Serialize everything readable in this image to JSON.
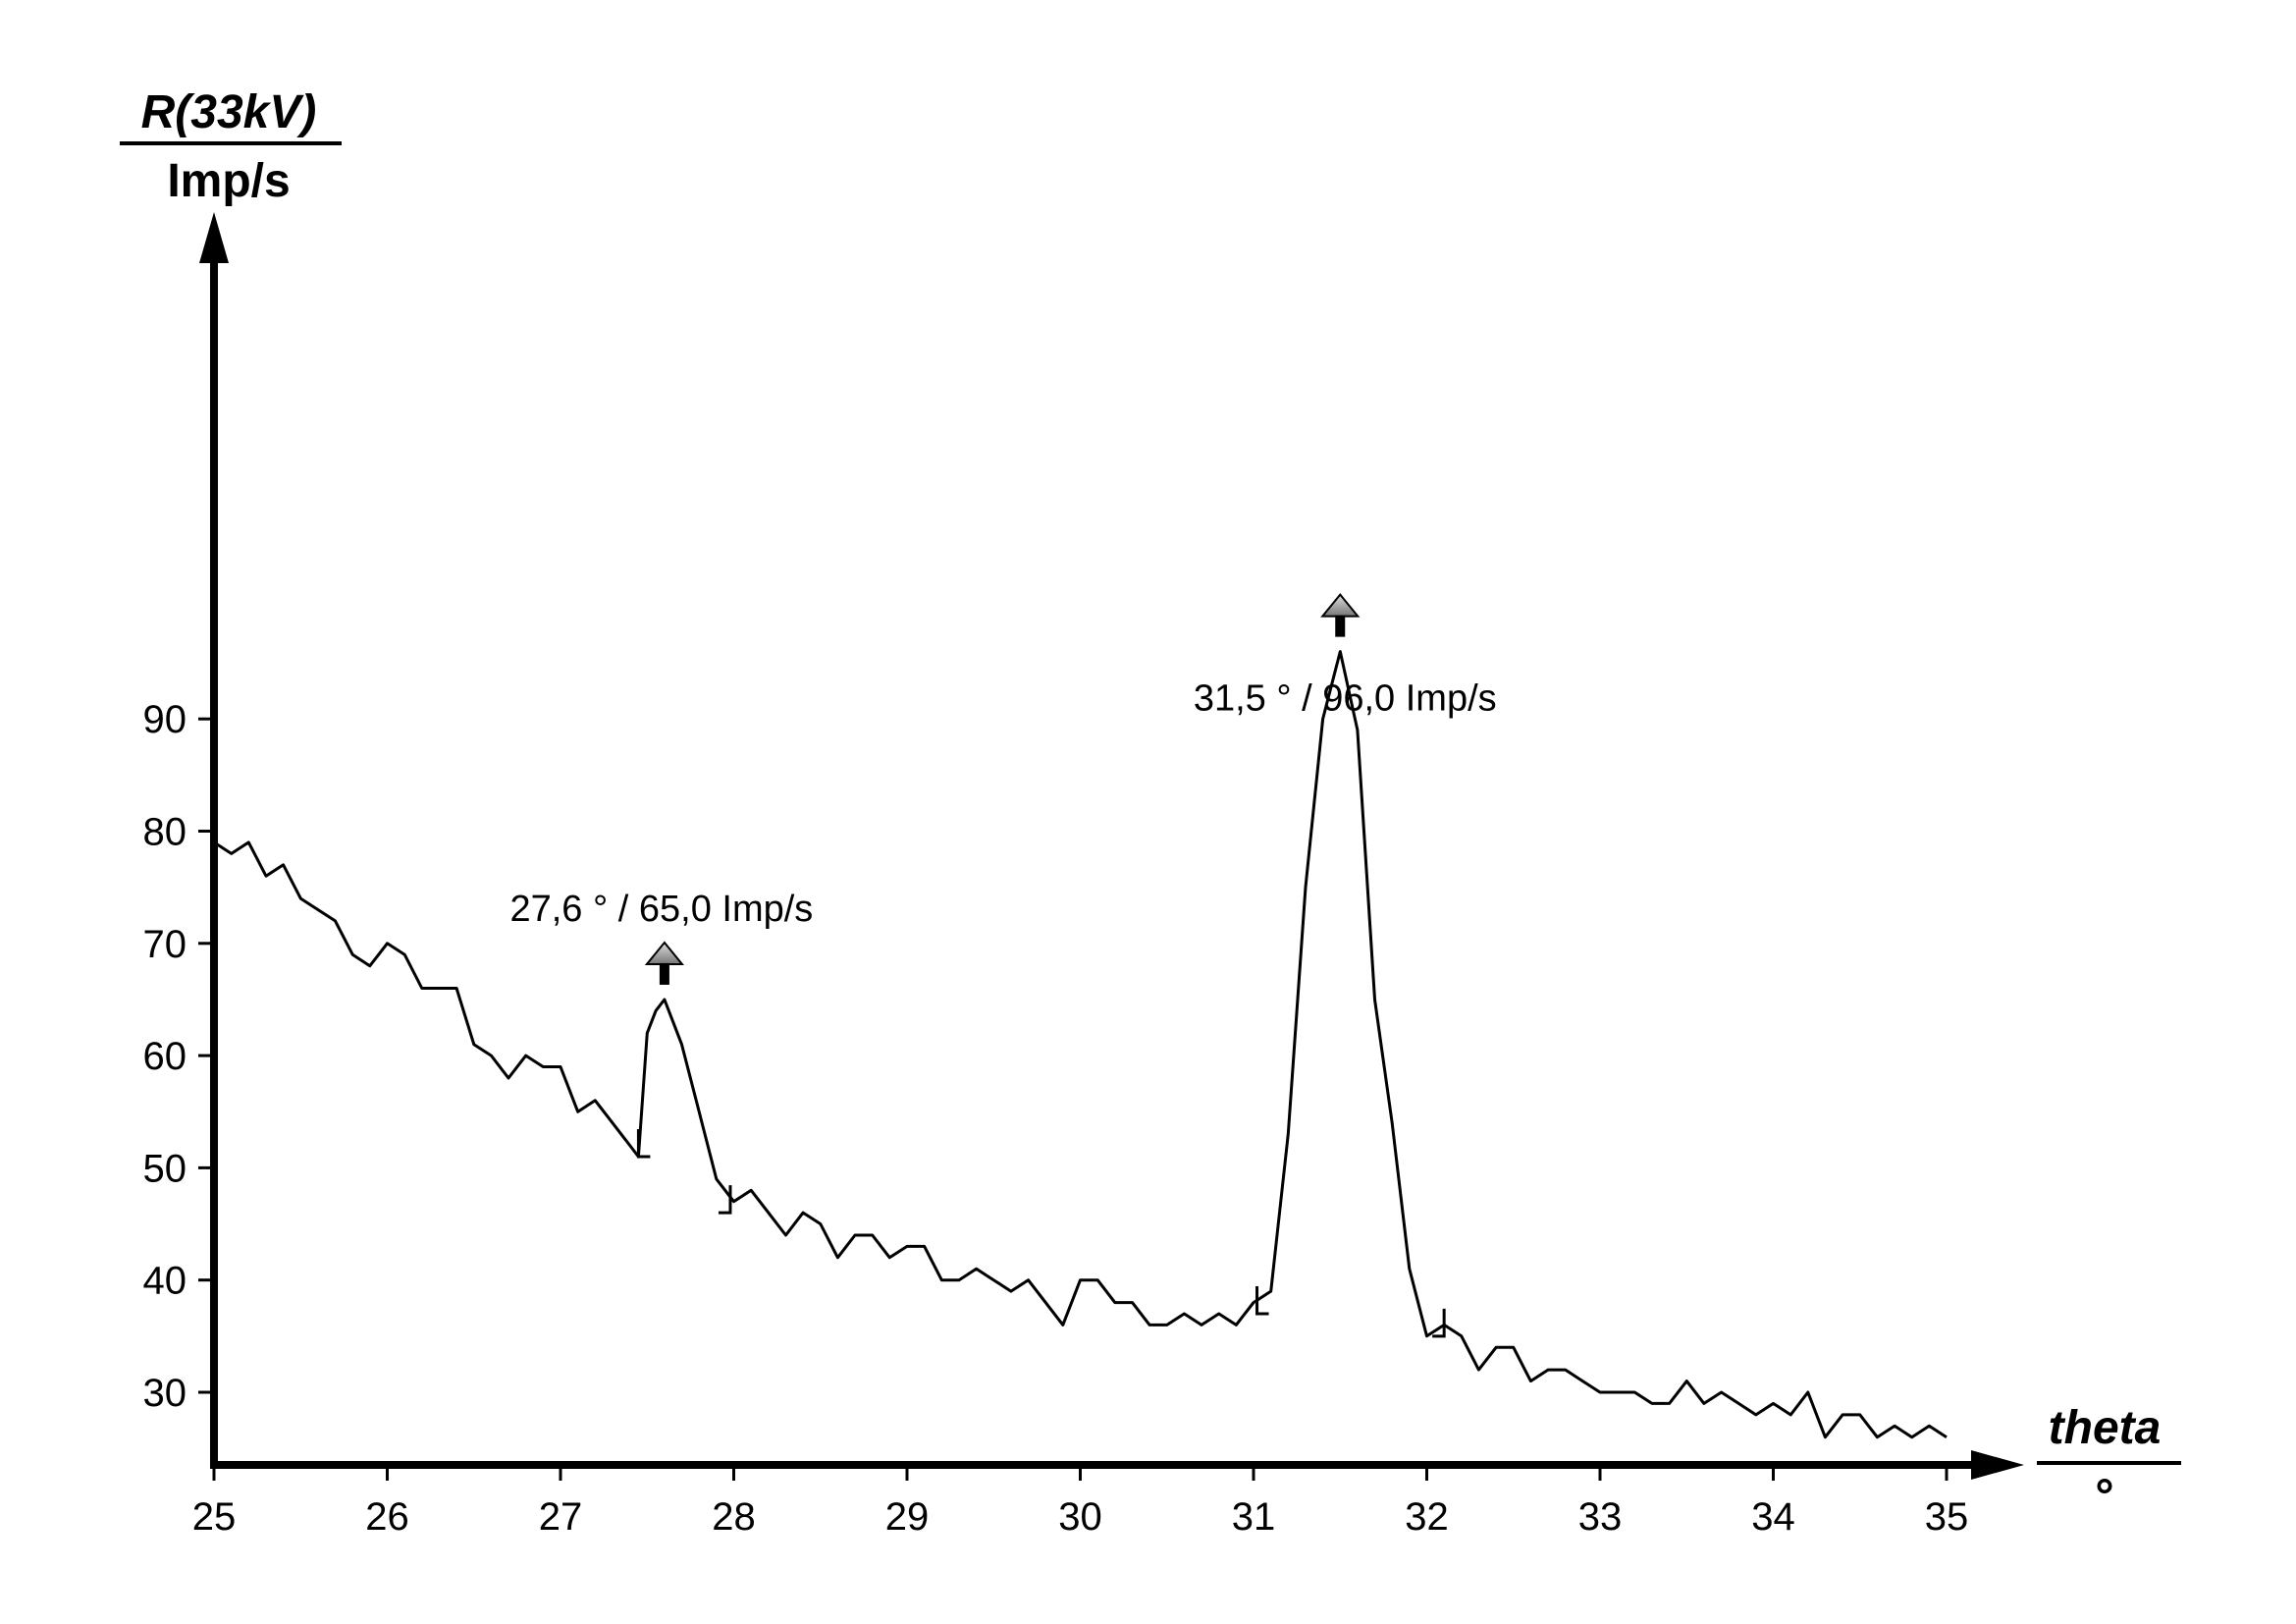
{
  "chart_data": {
    "type": "line",
    "y_axis": {
      "label_top": "R(33kV)",
      "label_bottom": "Imp/s",
      "ticks": [
        30,
        40,
        50,
        60,
        70,
        80,
        90
      ],
      "range": [
        25.8,
        97
      ]
    },
    "x_axis": {
      "label_top": "theta",
      "label_bottom": "°",
      "ticks": [
        25,
        26,
        27,
        28,
        29,
        30,
        31,
        32,
        33,
        34,
        35
      ],
      "range": [
        25,
        35
      ]
    },
    "grid": false,
    "line_color": "#000000",
    "peak_marker_color": "#999999",
    "series": [
      {
        "points": [
          [
            25.0,
            79
          ],
          [
            25.1,
            78
          ],
          [
            25.2,
            79
          ],
          [
            25.3,
            76
          ],
          [
            25.4,
            77
          ],
          [
            25.5,
            74
          ],
          [
            25.6,
            73
          ],
          [
            25.7,
            72
          ],
          [
            25.8,
            69
          ],
          [
            25.9,
            68
          ],
          [
            26.0,
            70
          ],
          [
            26.1,
            69
          ],
          [
            26.2,
            66
          ],
          [
            26.3,
            66
          ],
          [
            26.4,
            66
          ],
          [
            26.5,
            61
          ],
          [
            26.6,
            60
          ],
          [
            26.7,
            58
          ],
          [
            26.8,
            60
          ],
          [
            26.9,
            59
          ],
          [
            27.0,
            59
          ],
          [
            27.1,
            55
          ],
          [
            27.2,
            56
          ],
          [
            27.3,
            54
          ],
          [
            27.4,
            52
          ],
          [
            27.45,
            51
          ],
          [
            27.5,
            62
          ],
          [
            27.55,
            64
          ],
          [
            27.6,
            65
          ],
          [
            27.7,
            61
          ],
          [
            27.8,
            55
          ],
          [
            27.9,
            49
          ],
          [
            28.0,
            47
          ],
          [
            28.1,
            48
          ],
          [
            28.2,
            46
          ],
          [
            28.3,
            44
          ],
          [
            28.4,
            46
          ],
          [
            28.5,
            45
          ],
          [
            28.6,
            42
          ],
          [
            28.7,
            44
          ],
          [
            28.8,
            44
          ],
          [
            28.9,
            42
          ],
          [
            29.0,
            43
          ],
          [
            29.1,
            43
          ],
          [
            29.2,
            40
          ],
          [
            29.3,
            40
          ],
          [
            29.4,
            41
          ],
          [
            29.5,
            40
          ],
          [
            29.6,
            39
          ],
          [
            29.7,
            40
          ],
          [
            29.8,
            38
          ],
          [
            29.9,
            36
          ],
          [
            30.0,
            40
          ],
          [
            30.1,
            40
          ],
          [
            30.2,
            38
          ],
          [
            30.3,
            38
          ],
          [
            30.4,
            36
          ],
          [
            30.5,
            36
          ],
          [
            30.6,
            37
          ],
          [
            30.7,
            36
          ],
          [
            30.8,
            37
          ],
          [
            30.9,
            36
          ],
          [
            31.0,
            38
          ],
          [
            31.1,
            39
          ],
          [
            31.2,
            53
          ],
          [
            31.3,
            75
          ],
          [
            31.4,
            90
          ],
          [
            31.5,
            96
          ],
          [
            31.6,
            89
          ],
          [
            31.7,
            65
          ],
          [
            31.8,
            54
          ],
          [
            31.9,
            41
          ],
          [
            32.0,
            35
          ],
          [
            32.1,
            36
          ],
          [
            32.2,
            35
          ],
          [
            32.3,
            32
          ],
          [
            32.4,
            34
          ],
          [
            32.5,
            34
          ],
          [
            32.6,
            31
          ],
          [
            32.7,
            32
          ],
          [
            32.8,
            32
          ],
          [
            32.9,
            31
          ],
          [
            33.0,
            30
          ],
          [
            33.1,
            30
          ],
          [
            33.2,
            30
          ],
          [
            33.3,
            29
          ],
          [
            33.4,
            29
          ],
          [
            33.5,
            31
          ],
          [
            33.6,
            29
          ],
          [
            33.7,
            30
          ],
          [
            33.8,
            29
          ],
          [
            33.9,
            28
          ],
          [
            34.0,
            29
          ],
          [
            34.1,
            28
          ],
          [
            34.2,
            30
          ],
          [
            34.3,
            26
          ],
          [
            34.4,
            28
          ],
          [
            34.5,
            28
          ],
          [
            34.6,
            26
          ],
          [
            34.7,
            27
          ],
          [
            34.8,
            26
          ],
          [
            34.9,
            27
          ],
          [
            35.0,
            26
          ]
        ]
      }
    ],
    "peaks": [
      {
        "x": 27.6,
        "y": 65.0,
        "label": "27,6 ° / 65,0 Imp/s",
        "bracket_start": [
          27.45,
          51
        ],
        "bracket_end": [
          27.98,
          46
        ]
      },
      {
        "x": 31.5,
        "y": 96.0,
        "label": "31,5 ° / 96,0 Imp/s",
        "bracket_start": [
          31.02,
          37
        ],
        "bracket_end": [
          32.1,
          35
        ]
      }
    ]
  }
}
